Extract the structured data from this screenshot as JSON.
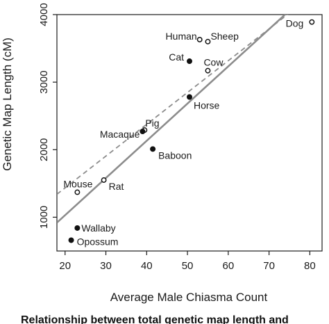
{
  "chart_data": {
    "type": "scatter",
    "xlabel": "Average Male Chiasma Count",
    "ylabel": "Genetic Map Length (cM)",
    "xlim": [
      18,
      83
    ],
    "ylim": [
      500,
      4000
    ],
    "xticks": [
      20,
      30,
      40,
      50,
      60,
      70,
      80
    ],
    "yticks": [
      1000,
      2000,
      3000,
      4000
    ],
    "grid": false,
    "legend": "none",
    "colors": {
      "points": "#111111",
      "solid_line": "#8c8c8c",
      "dashed_line": "#8c8c8c"
    },
    "points": [
      {
        "name": "Dog",
        "x": 80.5,
        "y": 3890,
        "filled": false
      },
      {
        "name": "Human",
        "x": 53.0,
        "y": 3630,
        "filled": false
      },
      {
        "name": "Sheep",
        "x": 55.0,
        "y": 3600,
        "filled": false
      },
      {
        "name": "Cat",
        "x": 50.5,
        "y": 3310,
        "filled": true
      },
      {
        "name": "Cow",
        "x": 55.0,
        "y": 3170,
        "filled": false
      },
      {
        "name": "Horse",
        "x": 50.5,
        "y": 2780,
        "filled": true
      },
      {
        "name": "Pig",
        "x": 39.5,
        "y": 2290,
        "filled": false
      },
      {
        "name": "Macaque",
        "x": 39.0,
        "y": 2270,
        "filled": true
      },
      {
        "name": "Baboon",
        "x": 41.5,
        "y": 2010,
        "filled": true
      },
      {
        "name": "Rat",
        "x": 29.5,
        "y": 1550,
        "filled": false
      },
      {
        "name": "Mouse",
        "x": 23.0,
        "y": 1370,
        "filled": false
      },
      {
        "name": "Wallaby",
        "x": 23.0,
        "y": 840,
        "filled": true
      },
      {
        "name": "Opossum",
        "x": 21.5,
        "y": 660,
        "filled": true
      }
    ],
    "lines": [
      {
        "style": "solid",
        "x": [
          18,
          83
        ],
        "y": [
          920,
          4500
        ]
      },
      {
        "style": "dashed",
        "x": [
          18,
          83
        ],
        "y": [
          1340,
          4400
        ]
      }
    ]
  },
  "caption_fragment": "Relationship between total genetic map length and"
}
